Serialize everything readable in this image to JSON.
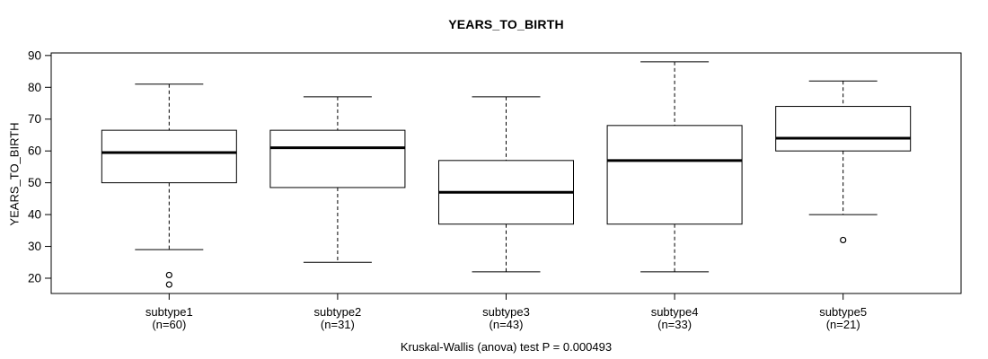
{
  "title": "YEARS_TO_BIRTH",
  "chart_data": {
    "type": "boxplot",
    "title": "YEARS_TO_BIRTH",
    "xlabel": "",
    "ylabel": "YEARS_TO_BIRTH",
    "ylim": [
      15.2,
      90.8
    ],
    "yticks": [
      20,
      30,
      40,
      50,
      60,
      70,
      80,
      90
    ],
    "grid": false,
    "annotation": "Kruskal-Wallis (anova) test P = 0.000493",
    "groups": [
      {
        "label": "subtype1",
        "sublabel": "(n=60)",
        "n": 60,
        "whisker_low": 29,
        "q1": 50,
        "median": 59.5,
        "q3": 66.5,
        "whisker_high": 81,
        "outliers": [
          21,
          18
        ]
      },
      {
        "label": "subtype2",
        "sublabel": "(n=31)",
        "n": 31,
        "whisker_low": 25,
        "q1": 48.5,
        "median": 61,
        "q3": 66.5,
        "whisker_high": 77,
        "outliers": []
      },
      {
        "label": "subtype3",
        "sublabel": "(n=43)",
        "n": 43,
        "whisker_low": 22,
        "q1": 37,
        "median": 47,
        "q3": 57,
        "whisker_high": 77,
        "outliers": []
      },
      {
        "label": "subtype4",
        "sublabel": "(n=33)",
        "n": 33,
        "whisker_low": 22,
        "q1": 37,
        "median": 57,
        "q3": 68,
        "whisker_high": 88,
        "outliers": []
      },
      {
        "label": "subtype5",
        "sublabel": "(n=21)",
        "n": 21,
        "whisker_low": 40,
        "q1": 60,
        "median": 64,
        "q3": 74,
        "whisker_high": 82,
        "outliers": [
          32
        ]
      }
    ],
    "colors": {
      "stroke": "#000000",
      "box_fill": "#ffffff",
      "background": "#ffffff"
    }
  }
}
